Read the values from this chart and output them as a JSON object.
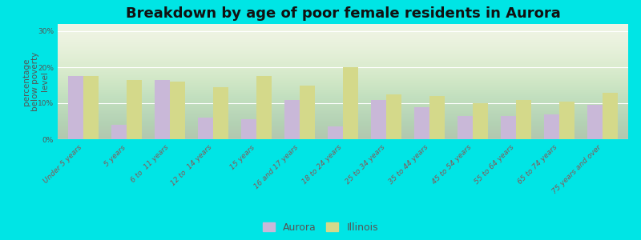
{
  "title": "Breakdown by age of poor female residents in Aurora",
  "ylabel": "percentage\nbelow poverty\nlevel",
  "categories": [
    "Under 5 years",
    "5 years",
    "6 to  11 years",
    "12 to  14 years",
    "15 years",
    "16 and 17 years",
    "18 to 24 years",
    "25 to 34 years",
    "35 to 44 years",
    "45 to 54 years",
    "55 to 64 years",
    "65 to 74 years",
    "75 years and over"
  ],
  "aurora_values": [
    17.5,
    4.0,
    16.5,
    6.0,
    5.5,
    11.0,
    3.5,
    11.0,
    9.0,
    6.5,
    6.5,
    7.0,
    9.5
  ],
  "illinois_values": [
    17.5,
    16.5,
    16.0,
    14.5,
    17.5,
    15.0,
    20.0,
    12.5,
    12.0,
    10.0,
    11.0,
    10.5,
    13.0
  ],
  "aurora_color": "#c9b8d8",
  "illinois_color": "#d4d98a",
  "background_color": "#00e5e5",
  "plot_bg_color": "#eef2e0",
  "yticks": [
    0,
    10,
    20,
    30
  ],
  "ytick_labels": [
    "0%",
    "10%",
    "20%",
    "30%"
  ],
  "ylim": [
    0,
    32
  ],
  "bar_width": 0.35,
  "title_fontsize": 13,
  "tick_fontsize": 6.5,
  "ylabel_fontsize": 7.5,
  "legend_fontsize": 9
}
